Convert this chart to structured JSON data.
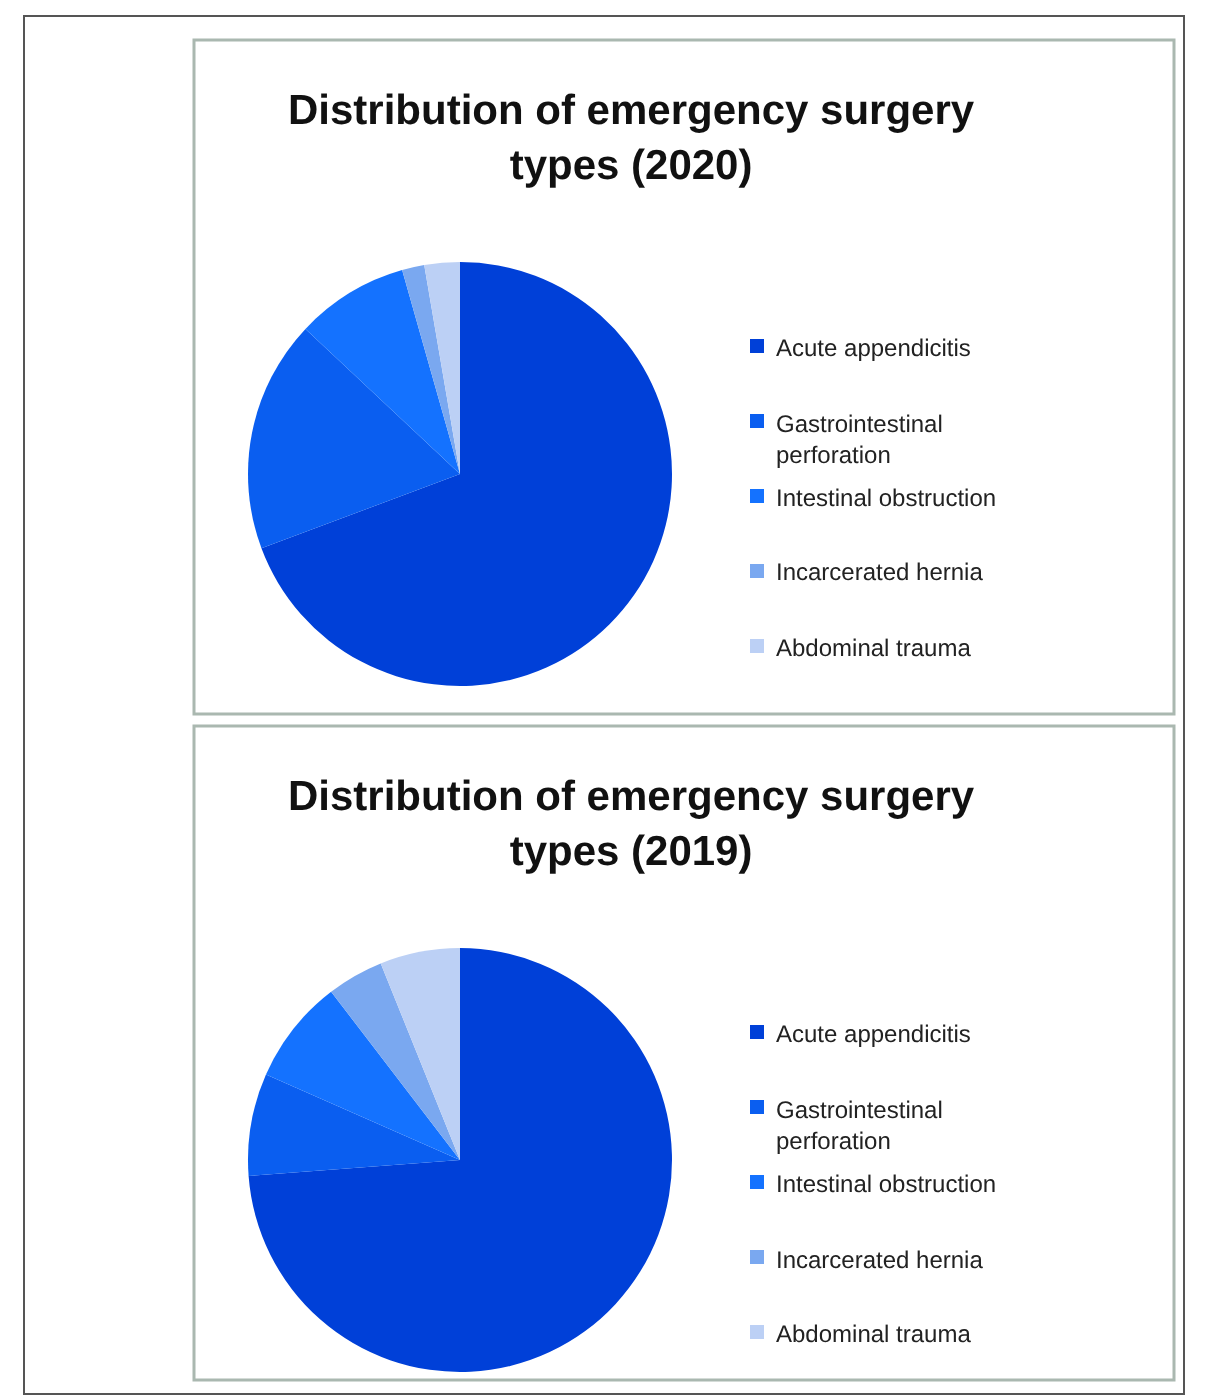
{
  "chart_data": [
    {
      "type": "pie",
      "title": "Distribution of emergency surgery types (2020)",
      "categories": [
        "Acute appendicitis",
        "Gastrointestinal perforation",
        "Intestinal obstruction",
        "Incarcerated hernia",
        "Abdominal trauma"
      ],
      "values": [
        69.3,
        17.7,
        8.6,
        1.7,
        2.7
      ],
      "colors": [
        "#0040d8",
        "#0a5ef0",
        "#1472ff",
        "#7aa8f0",
        "#bcd0f5"
      ],
      "legend": "right"
    },
    {
      "type": "pie",
      "title": "Distribution of emergency surgery types (2019)",
      "categories": [
        "Acute appendicitis",
        "Gastrointestinal perforation",
        "Intestinal obstruction",
        "Incarcerated hernia",
        "Abdominal trauma"
      ],
      "values": [
        73.8,
        7.8,
        8.0,
        4.3,
        6.1
      ],
      "colors": [
        "#0040d8",
        "#0a5ef0",
        "#1472ff",
        "#7aa8f0",
        "#bcd0f5"
      ],
      "legend": "right"
    }
  ]
}
